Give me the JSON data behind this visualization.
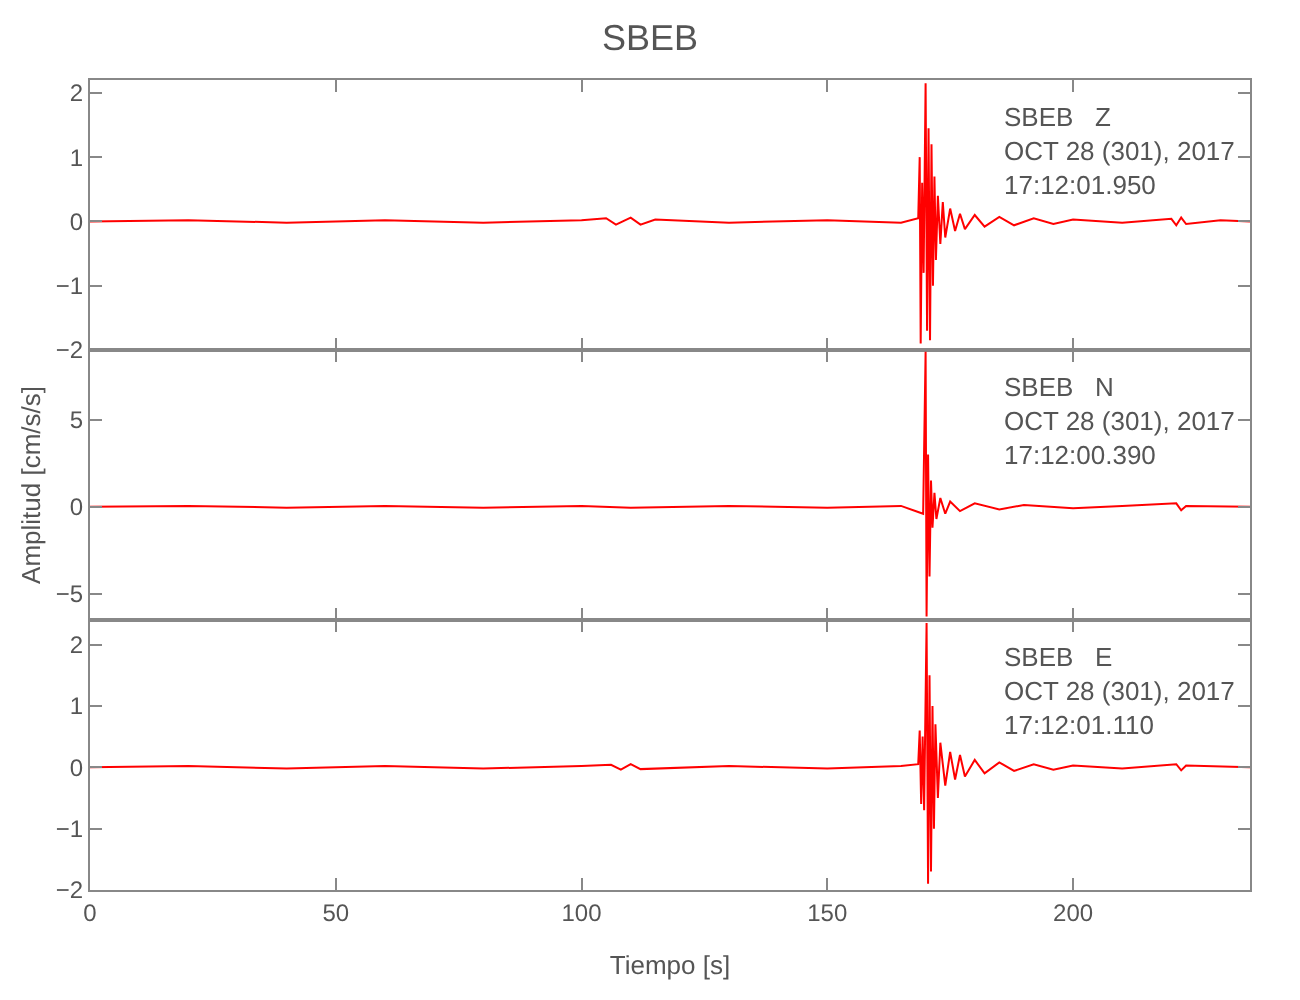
{
  "chart_data": [
    {
      "type": "line",
      "title": "SBEB",
      "annotations": [
        "SBEB   Z\nOCT 28 (301), 2017\n17:12:01.950"
      ],
      "x": [
        0,
        20,
        40,
        60,
        80,
        100,
        105,
        107,
        110,
        112,
        115,
        130,
        150,
        165,
        168.5,
        168.8,
        169.0,
        169.3,
        169.6,
        170.0,
        170.3,
        170.6,
        170.9,
        171.2,
        171.5,
        171.8,
        172.1,
        172.5,
        173,
        173.5,
        174,
        175,
        176,
        177,
        178,
        180,
        182,
        185,
        188,
        192,
        196,
        200,
        210,
        220,
        221,
        222,
        223,
        230,
        236
      ],
      "series": [
        {
          "color": "#ff0000",
          "values": [
            0,
            0.02,
            -0.02,
            0.02,
            -0.02,
            0.02,
            0.05,
            -0.05,
            0.06,
            -0.05,
            0.03,
            -0.02,
            0.02,
            -0.02,
            0.05,
            1.0,
            -1.9,
            0.6,
            -0.8,
            2.15,
            -1.7,
            1.45,
            -1.85,
            1.2,
            -1.0,
            0.7,
            -0.6,
            0.4,
            -0.35,
            0.3,
            -0.25,
            0.2,
            -0.15,
            0.12,
            -0.12,
            0.1,
            -0.08,
            0.07,
            -0.06,
            0.05,
            -0.04,
            0.03,
            -0.02,
            0.04,
            -0.06,
            0.06,
            -0.04,
            0.02,
            0
          ]
        }
      ],
      "xlim": [
        0,
        236
      ],
      "xticks": [
        0,
        50,
        100,
        150,
        200
      ],
      "ylim": [
        -2,
        2.2
      ],
      "yticks": [
        -2,
        -1,
        0,
        1,
        2
      ],
      "tick_labels": "y"
    },
    {
      "type": "line",
      "ylabel": "Amplitud [cm/s/s]",
      "annotations": [
        "SBEB   N\nOCT 28 (301), 2017\n17:12:00.390"
      ],
      "x": [
        0,
        20,
        40,
        60,
        80,
        100,
        110,
        130,
        150,
        165,
        169.5,
        170.0,
        170.2,
        170.5,
        170.8,
        171.1,
        171.4,
        171.8,
        172.2,
        173,
        174,
        175,
        177,
        180,
        185,
        190,
        200,
        210,
        221,
        222,
        223,
        236
      ],
      "series": [
        {
          "color": "#ff0000",
          "values": [
            0,
            0.05,
            -0.05,
            0.05,
            -0.05,
            0.05,
            -0.05,
            0.05,
            -0.05,
            0.05,
            -0.4,
            8.9,
            -6.3,
            3.0,
            -4.0,
            1.5,
            -1.2,
            0.8,
            -0.7,
            0.5,
            -0.4,
            0.3,
            -0.25,
            0.2,
            -0.15,
            0.1,
            -0.08,
            0.05,
            0.2,
            -0.2,
            0.05,
            0
          ]
        }
      ],
      "xlim": [
        0,
        236
      ],
      "xticks": [
        0,
        50,
        100,
        150,
        200
      ],
      "ylim": [
        -6.5,
        9
      ],
      "yticks": [
        -5,
        0,
        5
      ],
      "tick_labels": "y"
    },
    {
      "type": "line",
      "xlabel": "Tiempo [s]",
      "annotations": [
        "SBEB   E\nOCT 28 (301), 2017\n17:12:01.110"
      ],
      "x": [
        0,
        20,
        40,
        60,
        80,
        100,
        106,
        108,
        110,
        112,
        130,
        150,
        165,
        168.5,
        168.8,
        169.1,
        169.4,
        169.7,
        170.2,
        170.5,
        170.8,
        171.1,
        171.4,
        171.7,
        172,
        172.5,
        173,
        174,
        175,
        176,
        177,
        178,
        180,
        182,
        185,
        188,
        192,
        196,
        200,
        210,
        221,
        222,
        223,
        236
      ],
      "series": [
        {
          "color": "#ff0000",
          "values": [
            0,
            0.02,
            -0.02,
            0.02,
            -0.02,
            0.02,
            0.04,
            -0.04,
            0.05,
            -0.03,
            0.02,
            -0.02,
            0.02,
            0.05,
            0.6,
            -0.6,
            0.5,
            -0.7,
            2.35,
            -1.9,
            1.5,
            -1.7,
            1.0,
            -1.0,
            0.7,
            -0.5,
            0.4,
            -0.3,
            0.25,
            -0.2,
            0.2,
            -0.15,
            0.12,
            -0.1,
            0.08,
            -0.06,
            0.05,
            -0.04,
            0.03,
            -0.02,
            0.05,
            -0.05,
            0.03,
            0
          ]
        }
      ],
      "xlim": [
        0,
        236
      ],
      "xticks": [
        0,
        50,
        100,
        150,
        200
      ],
      "ylim": [
        -2,
        2.4
      ],
      "yticks": [
        -2,
        -1,
        0,
        1,
        2
      ]
    }
  ]
}
